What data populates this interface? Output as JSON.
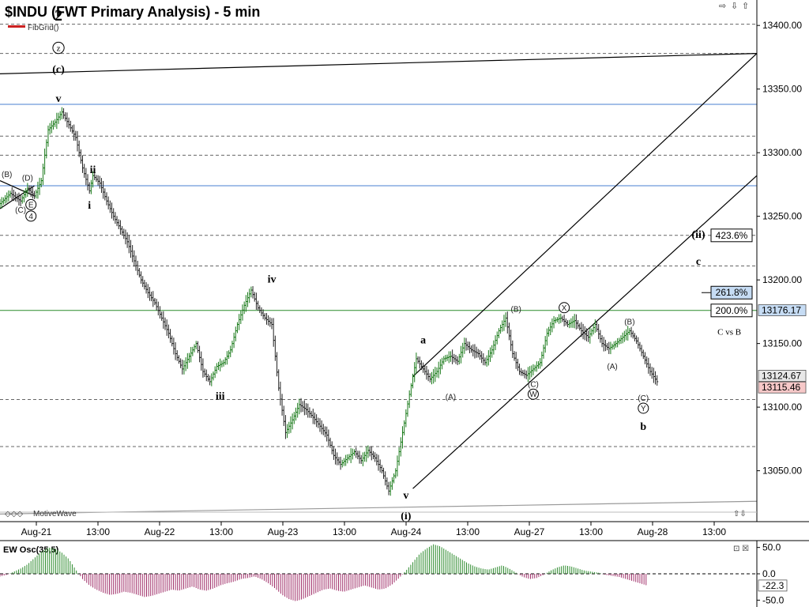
{
  "chart_data": {
    "type": "candlestick",
    "title": "$INDU (FWT Primary Analysis) - 5 min",
    "legend_label": "FibGrid()",
    "watermark": "MotiveWave",
    "y_range": [
      13010,
      13420
    ],
    "y_ticks": [
      13050,
      13100,
      13150,
      13200,
      13250,
      13300,
      13350,
      13400
    ],
    "y_tick_labels": [
      "13050.00",
      "13100.00",
      "13150.00",
      "13200.00",
      "13250.00",
      "13300.00",
      "13350.00",
      "13400.00"
    ],
    "x_labels": [
      "Aug-21",
      "13:00",
      "Aug-22",
      "13:00",
      "Aug-23",
      "13:00",
      "Aug-24",
      "13:00",
      "Aug-27",
      "13:00",
      "Aug-28",
      "13:00"
    ],
    "price_path": [
      [
        0,
        13260
      ],
      [
        3,
        13268
      ],
      [
        6,
        13262
      ],
      [
        8,
        13272
      ],
      [
        10,
        13266
      ],
      [
        12,
        13278
      ],
      [
        14,
        13318
      ],
      [
        16,
        13324
      ],
      [
        18,
        13332
      ],
      [
        20,
        13322
      ],
      [
        22,
        13312
      ],
      [
        24,
        13288
      ],
      [
        26,
        13270
      ],
      [
        27,
        13282
      ],
      [
        29,
        13276
      ],
      [
        31,
        13262
      ],
      [
        33,
        13250
      ],
      [
        35,
        13240
      ],
      [
        37,
        13230
      ],
      [
        39,
        13215
      ],
      [
        41,
        13200
      ],
      [
        43,
        13190
      ],
      [
        45,
        13182
      ],
      [
        47,
        13170
      ],
      [
        49,
        13158
      ],
      [
        51,
        13142
      ],
      [
        53,
        13130
      ],
      [
        55,
        13140
      ],
      [
        57,
        13150
      ],
      [
        59,
        13128
      ],
      [
        61,
        13120
      ],
      [
        63,
        13132
      ],
      [
        65,
        13135
      ],
      [
        67,
        13145
      ],
      [
        69,
        13165
      ],
      [
        71,
        13180
      ],
      [
        73,
        13192
      ],
      [
        75,
        13178
      ],
      [
        77,
        13170
      ],
      [
        79,
        13165
      ],
      [
        81,
        13115
      ],
      [
        83,
        13080
      ],
      [
        85,
        13090
      ],
      [
        87,
        13102
      ],
      [
        89,
        13098
      ],
      [
        91,
        13092
      ],
      [
        93,
        13085
      ],
      [
        95,
        13078
      ],
      [
        97,
        13062
      ],
      [
        99,
        13055
      ],
      [
        101,
        13060
      ],
      [
        103,
        13065
      ],
      [
        105,
        13058
      ],
      [
        107,
        13066
      ],
      [
        109,
        13060
      ],
      [
        111,
        13050
      ],
      [
        113,
        13034
      ],
      [
        115,
        13050
      ],
      [
        117,
        13080
      ],
      [
        119,
        13110
      ],
      [
        121,
        13138
      ],
      [
        123,
        13130
      ],
      [
        125,
        13122
      ],
      [
        127,
        13128
      ],
      [
        129,
        13138
      ],
      [
        131,
        13140
      ],
      [
        133,
        13136
      ],
      [
        135,
        13150
      ],
      [
        137,
        13145
      ],
      [
        139,
        13142
      ],
      [
        141,
        13135
      ],
      [
        143,
        13145
      ],
      [
        145,
        13160
      ],
      [
        147,
        13170
      ],
      [
        149,
        13142
      ],
      [
        151,
        13128
      ],
      [
        153,
        13125
      ],
      [
        155,
        13130
      ],
      [
        157,
        13135
      ],
      [
        159,
        13158
      ],
      [
        161,
        13168
      ],
      [
        163,
        13170
      ],
      [
        165,
        13165
      ],
      [
        167,
        13168
      ],
      [
        169,
        13160
      ],
      [
        171,
        13155
      ],
      [
        173,
        13165
      ],
      [
        175,
        13150
      ],
      [
        177,
        13146
      ],
      [
        179,
        13150
      ],
      [
        181,
        13155
      ],
      [
        183,
        13160
      ],
      [
        185,
        13152
      ],
      [
        187,
        13140
      ],
      [
        189,
        13128
      ],
      [
        191,
        13120
      ]
    ],
    "fib_levels": [
      {
        "label": "423.6%",
        "value": 13235
      },
      {
        "label": "261.8%",
        "value": 13190
      },
      {
        "label": "200.0%",
        "value": 13176
      }
    ],
    "horizontal_lines": [
      13401,
      13378,
      13338,
      13313,
      13298,
      13274,
      13235,
      13211,
      13176,
      13106,
      13069
    ],
    "price_tags": [
      {
        "label": "13176.17",
        "value": 13176.17,
        "color": "#c6dcf4"
      },
      {
        "label": "13124.67",
        "value": 13124.67,
        "color": "#e8e8e8"
      },
      {
        "label": "13115.46",
        "value": 13115.46,
        "color": "#f6c8c8"
      }
    ],
    "wave_labels": [
      {
        "text": "2",
        "x": 17,
        "y": 13404,
        "size": 20
      },
      {
        "text": "z",
        "x": 17,
        "y": 13380,
        "size": 11,
        "circle": true
      },
      {
        "text": "(c)",
        "x": 17,
        "y": 13363,
        "size": 14
      },
      {
        "text": "v",
        "x": 17,
        "y": 13340,
        "size": 14
      },
      {
        "text": "(B)",
        "x": 2,
        "y": 13281,
        "size": 10
      },
      {
        "text": "(D)",
        "x": 8,
        "y": 13278,
        "size": 10
      },
      {
        "text": "(C)",
        "x": 6,
        "y": 13253,
        "size": 10
      },
      {
        "text": "E",
        "x": 9,
        "y": 13257,
        "size": 10,
        "circle": true
      },
      {
        "text": "4",
        "x": 9,
        "y": 13248,
        "size": 10,
        "circle": true
      },
      {
        "text": "ii",
        "x": 27,
        "y": 13284,
        "size": 14
      },
      {
        "text": "i",
        "x": 26,
        "y": 13256,
        "size": 14
      },
      {
        "text": "iv",
        "x": 79,
        "y": 13198,
        "size": 14
      },
      {
        "text": "iii",
        "x": 64,
        "y": 13106,
        "size": 14
      },
      {
        "text": "v",
        "x": 118,
        "y": 13028,
        "size": 14
      },
      {
        "text": "(i)",
        "x": 118,
        "y": 13012,
        "size": 14
      },
      {
        "text": "a",
        "x": 123,
        "y": 13150,
        "size": 14
      },
      {
        "text": "(A)",
        "x": 131,
        "y": 13106,
        "size": 10
      },
      {
        "text": "(B)",
        "x": 150,
        "y": 13175,
        "size": 10
      },
      {
        "text": "(C)",
        "x": 155,
        "y": 13116,
        "size": 10
      },
      {
        "text": "W",
        "x": 155,
        "y": 13108,
        "size": 10,
        "circle": true
      },
      {
        "text": "X",
        "x": 164,
        "y": 13176,
        "size": 10,
        "circle": true
      },
      {
        "text": "(B)",
        "x": 183,
        "y": 13165,
        "size": 10
      },
      {
        "text": "(A)",
        "x": 178,
        "y": 13130,
        "size": 10
      },
      {
        "text": "(C)",
        "x": 187,
        "y": 13105,
        "size": 10
      },
      {
        "text": "Y",
        "x": 187,
        "y": 13097,
        "size": 10,
        "circle": true
      },
      {
        "text": "b",
        "x": 187,
        "y": 13082,
        "size": 14
      },
      {
        "text": "(ii)",
        "x": 203,
        "y": 13233,
        "size": 14
      },
      {
        "text": "c",
        "x": 203,
        "y": 13212,
        "size": 14
      },
      {
        "text": "C vs B",
        "x": 212,
        "y": 13157,
        "size": 11
      }
    ],
    "trend_lines": [
      {
        "from": [
          0,
          13362
        ],
        "to": [
          220,
          13378
        ]
      },
      {
        "from": [
          120,
          13124
        ],
        "to": [
          220,
          13378
        ]
      },
      {
        "from": [
          120,
          13036
        ],
        "to": [
          220,
          13282
        ]
      },
      {
        "from": [
          0,
          13256
        ],
        "to": [
          10,
          13274
        ]
      },
      {
        "from": [
          0,
          13278
        ],
        "to": [
          10,
          13266
        ]
      },
      {
        "from": [
          0,
          13016
        ],
        "to": [
          220,
          13026
        ]
      }
    ],
    "oscillator": {
      "title": "EW Osc(35,5)",
      "y_range": [
        -60,
        60
      ],
      "y_ticks": [
        50,
        0,
        -50
      ],
      "y_tick_labels": [
        "50.0",
        "0.0",
        "-50.0"
      ],
      "current_label": "-22.3",
      "current_value": -22.3,
      "values": [
        [
          0,
          -5
        ],
        [
          2,
          -2
        ],
        [
          4,
          4
        ],
        [
          6,
          10
        ],
        [
          8,
          18
        ],
        [
          10,
          30
        ],
        [
          12,
          42
        ],
        [
          14,
          50
        ],
        [
          16,
          48
        ],
        [
          18,
          40
        ],
        [
          20,
          28
        ],
        [
          22,
          8
        ],
        [
          24,
          -10
        ],
        [
          26,
          -22
        ],
        [
          28,
          -30
        ],
        [
          30,
          -36
        ],
        [
          32,
          -40
        ],
        [
          34,
          -38
        ],
        [
          36,
          -34
        ],
        [
          38,
          -36
        ],
        [
          40,
          -40
        ],
        [
          42,
          -44
        ],
        [
          44,
          -42
        ],
        [
          46,
          -38
        ],
        [
          48,
          -34
        ],
        [
          50,
          -30
        ],
        [
          52,
          -32
        ],
        [
          54,
          -28
        ],
        [
          56,
          -24
        ],
        [
          58,
          -30
        ],
        [
          60,
          -32
        ],
        [
          62,
          -28
        ],
        [
          64,
          -22
        ],
        [
          66,
          -18
        ],
        [
          68,
          -15
        ],
        [
          70,
          -10
        ],
        [
          72,
          -8
        ],
        [
          74,
          -5
        ],
        [
          76,
          -10
        ],
        [
          78,
          -18
        ],
        [
          80,
          -28
        ],
        [
          82,
          -40
        ],
        [
          84,
          -48
        ],
        [
          86,
          -52
        ],
        [
          88,
          -48
        ],
        [
          90,
          -42
        ],
        [
          92,
          -36
        ],
        [
          94,
          -30
        ],
        [
          96,
          -28
        ],
        [
          98,
          -32
        ],
        [
          100,
          -34
        ],
        [
          102,
          -30
        ],
        [
          104,
          -26
        ],
        [
          106,
          -22
        ],
        [
          108,
          -26
        ],
        [
          110,
          -30
        ],
        [
          112,
          -28
        ],
        [
          114,
          -20
        ],
        [
          116,
          -8
        ],
        [
          118,
          6
        ],
        [
          120,
          22
        ],
        [
          122,
          38
        ],
        [
          124,
          48
        ],
        [
          126,
          56
        ],
        [
          128,
          52
        ],
        [
          130,
          44
        ],
        [
          132,
          36
        ],
        [
          134,
          28
        ],
        [
          136,
          20
        ],
        [
          138,
          14
        ],
        [
          140,
          10
        ],
        [
          142,
          8
        ],
        [
          144,
          12
        ],
        [
          146,
          16
        ],
        [
          148,
          10
        ],
        [
          150,
          2
        ],
        [
          152,
          -6
        ],
        [
          154,
          -10
        ],
        [
          156,
          -8
        ],
        [
          158,
          -2
        ],
        [
          160,
          6
        ],
        [
          162,
          12
        ],
        [
          164,
          16
        ],
        [
          166,
          14
        ],
        [
          168,
          10
        ],
        [
          170,
          6
        ],
        [
          172,
          4
        ],
        [
          174,
          2
        ],
        [
          176,
          -2
        ],
        [
          178,
          -4
        ],
        [
          180,
          -6
        ],
        [
          182,
          -10
        ],
        [
          184,
          -14
        ],
        [
          186,
          -18
        ],
        [
          188,
          -22
        ]
      ]
    }
  }
}
